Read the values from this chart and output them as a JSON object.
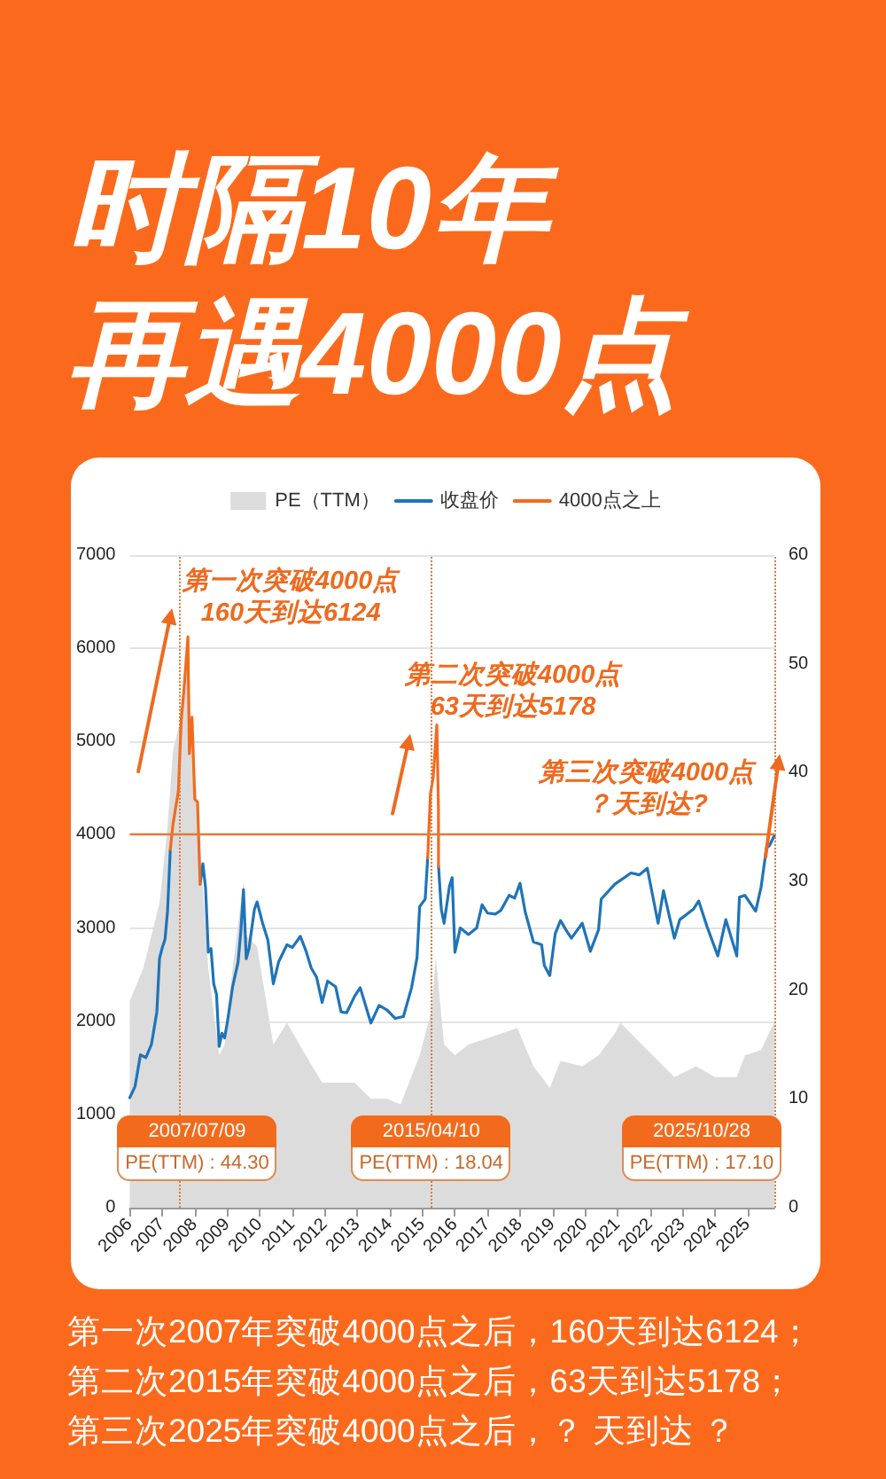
{
  "chart_data": {
    "type": "line",
    "title": "时隔10年",
    "subtitle": "再遇4000点",
    "legend": "top",
    "grid": "y",
    "marker": "none",
    "line_style": "solid",
    "x": [
      "2006-01",
      "2006-03",
      "2006-05",
      "2006-07",
      "2006-09",
      "2006-11",
      "2006-12",
      "2007-01",
      "2007-02",
      "2007-03",
      "2007-04",
      "2007-05",
      "2007-07",
      "2007-08",
      "2007-09",
      "2007-10-16",
      "2007-11",
      "2007-12",
      "2008-01",
      "2008-02",
      "2008-03",
      "2008-04",
      "2008-05",
      "2008-06",
      "2008-07",
      "2008-08",
      "2008-09",
      "2008-10",
      "2008-11",
      "2008-12",
      "2009-01",
      "2009-03",
      "2009-05",
      "2009-06",
      "2009-07",
      "2009-08",
      "2009-09",
      "2009-11",
      "2009-12",
      "2010-02",
      "2010-04",
      "2010-06",
      "2010-08",
      "2010-11",
      "2011-01",
      "2011-04",
      "2011-06",
      "2011-08",
      "2011-10",
      "2011-12",
      "2012-02",
      "2012-05",
      "2012-07",
      "2012-09",
      "2012-12",
      "2013-02",
      "2013-06",
      "2013-09",
      "2013-12",
      "2014-03",
      "2014-06",
      "2014-09",
      "2014-11",
      "2014-12",
      "2015-02",
      "2015-03",
      "2015-04",
      "2015-05",
      "2015-06-12",
      "2015-06-30",
      "2015-07",
      "2015-08",
      "2015-09",
      "2015-11",
      "2015-12",
      "2016-01",
      "2016-03",
      "2016-06",
      "2016-09",
      "2016-11",
      "2017-01",
      "2017-04",
      "2017-06",
      "2017-09",
      "2017-11",
      "2018-01",
      "2018-03",
      "2018-06",
      "2018-09",
      "2018-10",
      "2018-12",
      "2019-02",
      "2019-04",
      "2019-06",
      "2019-08",
      "2019-12",
      "2020-03",
      "2020-06",
      "2020-07",
      "2020-12",
      "2021-02",
      "2021-06",
      "2021-09",
      "2021-12",
      "2022-04",
      "2022-06",
      "2022-10",
      "2022-12",
      "2023-05",
      "2023-07",
      "2023-10",
      "2024-02",
      "2024-05",
      "2024-09",
      "2024-10",
      "2024-12",
      "2025-04",
      "2025-06",
      "2025-08",
      "2025-09",
      "2025-10-28"
    ],
    "series": [
      {
        "name": "PE（TTM）",
        "type": "area",
        "axis": "y2",
        "color": "#dcdcdc",
        "x": [
          "2006-01",
          "2006-06",
          "2006-12",
          "2007-03",
          "2007-05",
          "2007-07-09",
          "2007-10",
          "2007-12",
          "2008-03",
          "2008-06",
          "2008-10",
          "2008-12",
          "2009-03",
          "2009-07",
          "2009-08",
          "2009-12",
          "2010-06",
          "2010-11",
          "2011-06",
          "2011-12",
          "2012-06",
          "2012-12",
          "2013-06",
          "2013-12",
          "2014-05",
          "2014-12",
          "2015-04-10",
          "2015-06",
          "2015-09",
          "2016-01",
          "2016-06",
          "2017-06",
          "2017-12",
          "2018-06",
          "2018-12",
          "2019-04",
          "2019-12",
          "2020-06",
          "2020-12",
          "2021-02",
          "2021-12",
          "2022-10",
          "2023-06",
          "2024-01",
          "2024-09",
          "2024-12",
          "2025-06",
          "2025-10-28"
        ],
        "values": [
          19,
          22,
          28,
          35,
          42,
          44.3,
          50,
          44,
          33,
          22,
          14,
          15,
          22,
          30,
          25,
          24,
          15,
          17,
          14,
          11.5,
          11.5,
          11.5,
          10,
          10,
          9.5,
          14,
          18.04,
          23,
          15,
          14,
          15,
          16,
          16.5,
          13,
          11,
          13.5,
          13,
          14,
          16,
          17,
          14.5,
          12,
          13,
          12,
          12,
          14,
          14.5,
          17.1
        ]
      },
      {
        "name": "收盘价",
        "color": "#1f74b8",
        "values": [
          1180,
          1300,
          1640,
          1610,
          1750,
          2100,
          2675,
          2790,
          2880,
          3180,
          3840,
          null,
          null,
          null,
          null,
          null,
          null,
          null,
          null,
          null,
          3470,
          3690,
          3430,
          2740,
          2780,
          2400,
          2290,
          1730,
          1870,
          1820,
          1990,
          2370,
          2630,
          2960,
          3410,
          2670,
          2780,
          3200,
          3280,
          3050,
          2870,
          2400,
          2640,
          2820,
          2790,
          2910,
          2760,
          2570,
          2470,
          2200,
          2430,
          2370,
          2100,
          2090,
          2270,
          2360,
          1980,
          2170,
          2120,
          2030,
          2050,
          2360,
          2680,
          3230,
          3310,
          3750,
          null,
          null,
          null,
          null,
          3660,
          3200,
          3050,
          3450,
          3540,
          2740,
          3000,
          2930,
          3000,
          3250,
          3160,
          3150,
          3190,
          3350,
          3320,
          3480,
          3170,
          2850,
          2820,
          2600,
          2490,
          2940,
          3080,
          2980,
          2890,
          3050,
          2750,
          2980,
          3310,
          3470,
          3510,
          3590,
          3570,
          3640,
          3050,
          3400,
          2890,
          3090,
          3200,
          3290,
          3020,
          2700,
          3090,
          2700,
          3330,
          3350,
          3180,
          3440,
          3860,
          3880,
          3990
        ]
      },
      {
        "name": "4000点之上",
        "color": "#f26b1d",
        "x": [
          "2007-04",
          "2007-05",
          "2007-07",
          "2007-08",
          "2007-09",
          "2007-10-16",
          "2007-11",
          "2007-12",
          "2008-01",
          "2008-02",
          "2008-03",
          "2011-01",
          "2015-03",
          "2015-04",
          "2015-05",
          "2015-06-12",
          "2015-06-30",
          "2015-07"
        ],
        "values": [
          3840,
          4110,
          4470,
          5220,
          5550,
          6124,
          4870,
          5260,
          4380,
          4350,
          3470,
          null,
          3750,
          4440,
          4610,
          5178,
          4280,
          3660
        ]
      }
    ],
    "xlim": [
      "2006-01",
      "2025-10-28"
    ],
    "xticks": [
      "2006",
      "2007",
      "2008",
      "2009",
      "2010",
      "2011",
      "2012",
      "2013",
      "2014",
      "2015",
      "2016",
      "2017",
      "2018",
      "2019",
      "2020",
      "2021",
      "2022",
      "2023",
      "2024",
      "2025"
    ],
    "ylim": [
      0,
      7000
    ],
    "yticks": [
      0,
      1000,
      2000,
      3000,
      4000,
      5000,
      6000,
      7000
    ],
    "y2lim": [
      0,
      60
    ],
    "y2ticks": [
      0,
      10,
      20,
      30,
      40,
      50,
      60
    ],
    "ref_lines": [
      {
        "axis": "y",
        "value": 4000,
        "color": "#e07a3a",
        "line_style": "solid"
      },
      {
        "axis": "x",
        "value": "2007-07-09",
        "label": "2007/07/09\nPE(TTM) : 44.30",
        "color": "#e07a3a",
        "line_style": "dotted"
      },
      {
        "axis": "x",
        "value": "2015-04-10",
        "label": "2015/04/10\nPE(TTM) : 18.04",
        "color": "#e07a3a",
        "line_style": "dotted"
      },
      {
        "axis": "x",
        "value": "2025-10-28",
        "label": "2025/10/28\nPE(TTM) : 17.10",
        "color": "#e07a3a",
        "line_style": "dotted"
      }
    ],
    "annotations": [
      {
        "text": "第一次突破4000点\n160天到达6124",
        "x": "2007-10-16",
        "y": 6124
      },
      {
        "text": "第二次突破4000点\n63天到达5178",
        "x": "2015-06-12",
        "y": 5178
      },
      {
        "text": "第三次突破4000点？天到达?",
        "x": "2025-10-28",
        "y": 3990
      },
      "第一次2007年突破4000点之后，160天到达6124；",
      "第二次2015年突破4000点之后，63天到达5178；",
      "第三次2025年突破4000点之后，？ 天到达 ？"
    ]
  }
}
